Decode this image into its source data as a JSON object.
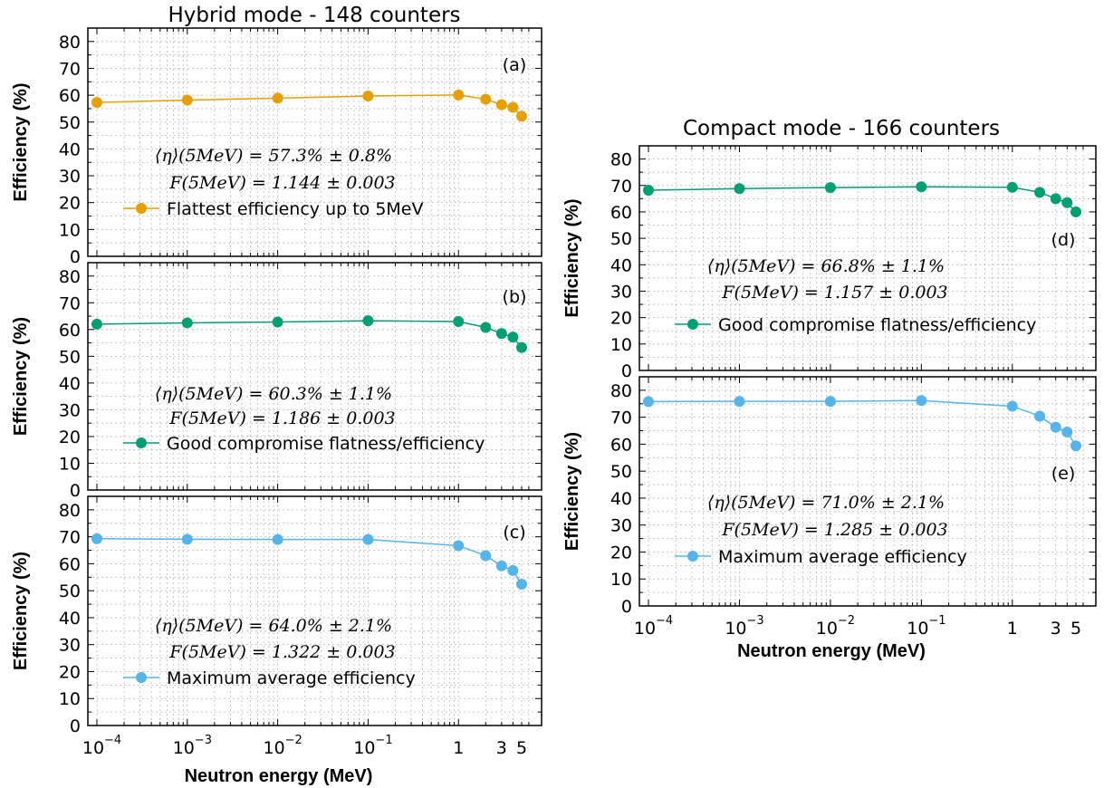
{
  "figure_titles": {
    "left": "Hybrid mode - 148 counters",
    "right": "Compact mode - 166 counters"
  },
  "colors": {
    "orange": "#e69f00",
    "green": "#009e73",
    "skyblue": "#56b4e9"
  },
  "chart_data": [
    {
      "type": "line",
      "panel": "(a)",
      "title": "Hybrid mode - 148 counters",
      "xlabel": "",
      "ylabel": "Efficiency (%)",
      "x_scale": "log",
      "x_ticks": [
        "10^-4",
        "10^-3",
        "10^-2",
        "10^-1",
        "1",
        "3",
        "5"
      ],
      "ylim": [
        0,
        85
      ],
      "y_ticks": [
        0,
        10,
        20,
        30,
        40,
        50,
        60,
        70,
        80
      ],
      "grid": true,
      "color": "orange",
      "annotations": [
        "⟨η⟩(5MeV) = 57.3% ± 0.8%",
        "F(5MeV) = 1.144 ± 0.003"
      ],
      "series": [
        {
          "name": "Flattest efficiency up to 5MeV",
          "x": [
            0.0001,
            0.001,
            0.01,
            0.1,
            1,
            2,
            3,
            4,
            5
          ],
          "y": [
            57.3,
            58.2,
            58.9,
            59.7,
            60.1,
            58.5,
            56.5,
            55.5,
            52.2
          ]
        }
      ]
    },
    {
      "type": "line",
      "panel": "(b)",
      "xlabel": "",
      "ylabel": "Efficiency (%)",
      "x_scale": "log",
      "x_ticks": [
        "10^-4",
        "10^-3",
        "10^-2",
        "10^-1",
        "1",
        "3",
        "5"
      ],
      "ylim": [
        0,
        85
      ],
      "y_ticks": [
        0,
        10,
        20,
        30,
        40,
        50,
        60,
        70,
        80
      ],
      "grid": true,
      "color": "green",
      "annotations": [
        "⟨η⟩(5MeV) = 60.3% ± 1.1%",
        "F(5MeV) = 1.186 ± 0.003"
      ],
      "series": [
        {
          "name": "Good compromise flatness/efficiency",
          "x": [
            0.0001,
            0.001,
            0.01,
            0.1,
            1,
            2,
            3,
            4,
            5
          ],
          "y": [
            62.0,
            62.5,
            62.8,
            63.3,
            63.0,
            60.8,
            58.5,
            57.2,
            53.3
          ]
        }
      ]
    },
    {
      "type": "line",
      "panel": "(c)",
      "xlabel": "Neutron energy (MeV)",
      "ylabel": "Efficiency (%)",
      "x_scale": "log",
      "x_ticks": [
        "10^-4",
        "10^-3",
        "10^-2",
        "10^-1",
        "1",
        "3",
        "5"
      ],
      "ylim": [
        0,
        85
      ],
      "y_ticks": [
        0,
        10,
        20,
        30,
        40,
        50,
        60,
        70,
        80
      ],
      "grid": true,
      "color": "skyblue",
      "annotations": [
        "⟨η⟩(5MeV) = 64.0% ± 2.1%",
        "F(5MeV) = 1.322 ± 0.003"
      ],
      "series": [
        {
          "name": "Maximum average efficiency",
          "x": [
            0.0001,
            0.001,
            0.01,
            0.1,
            1,
            2,
            3,
            4,
            5
          ],
          "y": [
            69.3,
            69.1,
            69.0,
            69.0,
            66.7,
            63.0,
            59.2,
            57.5,
            52.4
          ]
        }
      ]
    },
    {
      "type": "line",
      "panel": "(d)",
      "title": "Compact mode - 166 counters",
      "xlabel": "",
      "ylabel": "Efficiency (%)",
      "x_scale": "log",
      "x_ticks": [
        "10^-4",
        "10^-3",
        "10^-2",
        "10^-1",
        "1",
        "3",
        "5"
      ],
      "ylim": [
        0,
        85
      ],
      "y_ticks": [
        0,
        10,
        20,
        30,
        40,
        50,
        60,
        70,
        80
      ],
      "grid": true,
      "color": "green",
      "annotations": [
        "⟨η⟩(5MeV) = 66.8% ± 1.1%",
        "F(5MeV) = 1.157 ± 0.003"
      ],
      "series": [
        {
          "name": "Good compromise flatness/efficiency",
          "x": [
            0.0001,
            0.001,
            0.01,
            0.1,
            1,
            2,
            3,
            4,
            5
          ],
          "y": [
            68.2,
            68.8,
            69.2,
            69.5,
            69.3,
            67.4,
            65.0,
            63.5,
            60.0
          ]
        }
      ]
    },
    {
      "type": "line",
      "panel": "(e)",
      "xlabel": "Neutron energy (MeV)",
      "ylabel": "Efficiency (%)",
      "x_scale": "log",
      "x_ticks": [
        "10^-4",
        "10^-3",
        "10^-2",
        "10^-1",
        "1",
        "3",
        "5"
      ],
      "ylim": [
        0,
        85
      ],
      "y_ticks": [
        0,
        10,
        20,
        30,
        40,
        50,
        60,
        70,
        80
      ],
      "grid": true,
      "color": "skyblue",
      "annotations": [
        "⟨η⟩(5MeV) = 71.0% ± 2.1%",
        "F(5MeV) = 1.285 ± 0.003"
      ],
      "series": [
        {
          "name": "Maximum average efficiency",
          "x": [
            0.0001,
            0.001,
            0.01,
            0.1,
            1,
            2,
            3,
            4,
            5
          ],
          "y": [
            75.8,
            75.9,
            75.9,
            76.2,
            74.1,
            70.4,
            66.3,
            64.5,
            59.4
          ]
        }
      ]
    }
  ]
}
